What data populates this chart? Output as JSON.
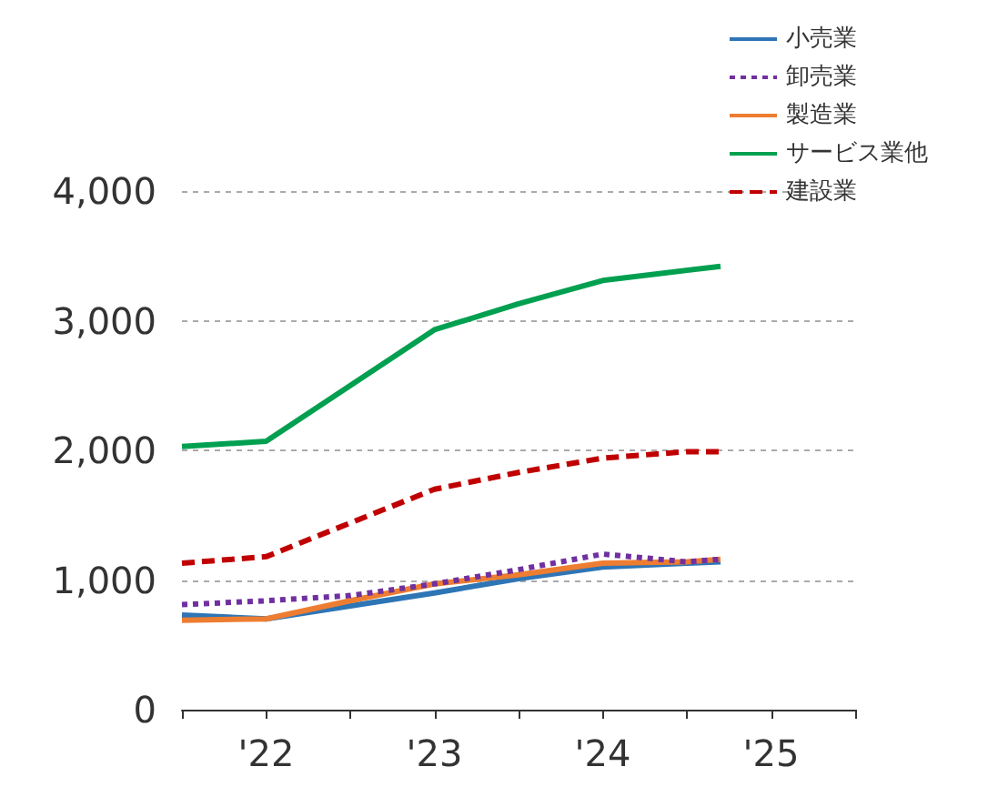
{
  "chart_data": {
    "type": "line",
    "xlim": [
      2021.5,
      2025.5
    ],
    "xticks": [
      {
        "value": 2021.5,
        "label": null
      },
      {
        "value": 2022,
        "label": "'22"
      },
      {
        "value": 2022.5,
        "label": null
      },
      {
        "value": 2023,
        "label": "'23"
      },
      {
        "value": 2023.5,
        "label": null
      },
      {
        "value": 2024,
        "label": "'24"
      },
      {
        "value": 2024.5,
        "label": null
      },
      {
        "value": 2025,
        "label": "'25"
      },
      {
        "value": 2025.5,
        "label": null
      }
    ],
    "ylim": [
      0,
      4000
    ],
    "yticks": [
      0,
      {
        "value": 1000,
        "label": "1,000"
      },
      {
        "value": 2000,
        "label": "2,000"
      },
      {
        "value": 3000,
        "label": "3,000"
      },
      {
        "value": 4000,
        "label": "4,000"
      }
    ],
    "grid": "y",
    "legend": "top right",
    "marker": "none",
    "x": [
      2021.5,
      2022,
      2022.5,
      2023,
      2023.5,
      2024,
      2024.5,
      2024.7
    ],
    "series": [
      {
        "name": "小売業",
        "color": "#2e75b6",
        "line_style": "solid",
        "values": [
          730,
          700,
          800,
          900,
          1010,
          1100,
          1130,
          1140
        ]
      },
      {
        "name": "卸売業",
        "color": "#7030a0",
        "line_style": "dotted",
        "values": [
          810,
          840,
          880,
          970,
          1080,
          1200,
          1140,
          1160
        ]
      },
      {
        "name": "製造業",
        "color": "#ed7d31",
        "line_style": "solid",
        "values": [
          690,
          700,
          840,
          970,
          1040,
          1130,
          1140,
          1160
        ]
      },
      {
        "name": "サービス業他",
        "color": "#00a050",
        "line_style": "solid",
        "x": [
          2021.5,
          2022,
          2023,
          2023.5,
          2024,
          2024.7
        ],
        "values": [
          2030,
          2070,
          2930,
          3130,
          3310,
          3420
        ]
      },
      {
        "name": "建設業",
        "color": "#c00000",
        "line_style": "dashed",
        "values": [
          1130,
          1180,
          1440,
          1700,
          1830,
          1940,
          1990,
          1990
        ]
      }
    ]
  }
}
